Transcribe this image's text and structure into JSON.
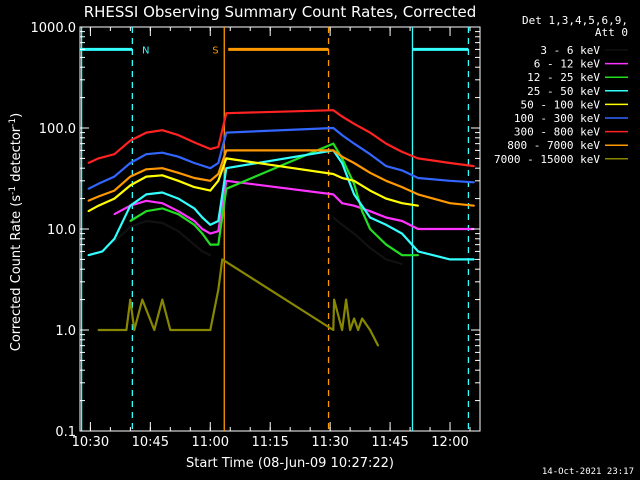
{
  "chart_data": {
    "type": "line",
    "title": "RHESSI Observing Summary Count Rates, Corrected",
    "xlabel": "Start Time (08-Jun-09 10:27:22)",
    "ylabel_main": "Corrected Count Rate (s",
    "ylabel_sup1": "-1",
    "ylabel_mid": " detector",
    "ylabel_sup2": "-1",
    "ylabel_end": ")",
    "yscale": "log",
    "ylim": [
      0.1,
      1000.0
    ],
    "xlim_minutes": [
      27.4,
      127.5
    ],
    "x_ticks": [
      {
        "label": "10:30",
        "minute": 30
      },
      {
        "label": "10:45",
        "minute": 45
      },
      {
        "label": "11:00",
        "minute": 60
      },
      {
        "label": "11:15",
        "minute": 75
      },
      {
        "label": "11:30",
        "minute": 90
      },
      {
        "label": "11:45",
        "minute": 105
      },
      {
        "label": "12:00",
        "minute": 120
      }
    ],
    "y_ticks": [
      {
        "label": "0.1",
        "value": 0.1
      },
      {
        "label": "1.0",
        "value": 1.0
      },
      {
        "label": "10.0",
        "value": 10.0
      },
      {
        "label": "100.0",
        "value": 100.0
      },
      {
        "label": "1000.0",
        "value": 1000.0
      }
    ],
    "legend_header": [
      "Det 1,3,4,5,6,9,",
      "Att 0"
    ],
    "legend_position": "top-right outside",
    "series": [
      {
        "name": "3 - 6 keV",
        "color": "#111111",
        "x": [
          29.5,
          32,
          36,
          40,
          44,
          48,
          52,
          56,
          58,
          60,
          62,
          90.8,
          93,
          96,
          100,
          104,
          108,
          112
        ],
        "y": [
          null,
          null,
          7.5,
          10.5,
          12,
          11.5,
          9.5,
          7,
          6,
          5.5,
          null,
          13,
          11,
          9,
          6.5,
          5,
          4.5,
          null
        ]
      },
      {
        "name": "6 - 12 keV",
        "color": "#ff33ff",
        "x": [
          29.5,
          36,
          40,
          44,
          48,
          52,
          56,
          58,
          60,
          62,
          64,
          90.8,
          93,
          96,
          100,
          104,
          108,
          112,
          120,
          126
        ],
        "y": [
          null,
          14,
          17,
          19,
          18,
          15,
          12,
          10,
          9,
          9.5,
          30,
          22,
          18,
          17,
          15,
          13,
          12,
          10,
          10,
          10
        ]
      },
      {
        "name": "12 - 25 keV",
        "color": "#22dd22",
        "x": [
          40,
          44,
          48,
          52,
          56,
          58,
          60,
          62,
          64,
          90.8,
          93,
          96,
          98,
          100,
          104,
          108,
          112
        ],
        "y": [
          12,
          15,
          16,
          14,
          11,
          9,
          7,
          7,
          25,
          70,
          50,
          28,
          15,
          10,
          7,
          5.5,
          5.5
        ]
      },
      {
        "name": "25 - 50 keV",
        "color": "#33ffff",
        "x": [
          29.5,
          33,
          36,
          40,
          44,
          48,
          52,
          56,
          58,
          60,
          62,
          64,
          90.8,
          93,
          96,
          100,
          104,
          108,
          112,
          120,
          126
        ],
        "y": [
          5.5,
          6,
          8,
          17,
          22,
          23,
          20,
          16,
          13,
          11,
          12,
          40,
          60,
          45,
          22,
          13,
          11,
          9,
          6,
          5,
          5
        ]
      },
      {
        "name": "50 - 100 keV",
        "color": "#ffff00",
        "x": [
          29.5,
          32,
          36,
          40,
          44,
          48,
          52,
          56,
          60,
          62,
          64,
          90.8,
          93,
          96,
          100,
          104,
          108,
          112
        ],
        "y": [
          15,
          17,
          20,
          27,
          33,
          34,
          30,
          26,
          24,
          30,
          50,
          35,
          32,
          30,
          24,
          20,
          18,
          17
        ]
      },
      {
        "name": "100 - 300 keV",
        "color": "#3366ff",
        "x": [
          29.5,
          32,
          36,
          40,
          44,
          48,
          52,
          56,
          60,
          62,
          64,
          90.8,
          93,
          96,
          100,
          104,
          108,
          112,
          120,
          126
        ],
        "y": [
          25,
          28,
          33,
          45,
          55,
          57,
          52,
          45,
          40,
          45,
          90,
          100,
          85,
          70,
          55,
          42,
          38,
          32,
          30,
          29
        ]
      },
      {
        "name": "300 - 800 keV",
        "color": "#ff2222",
        "x": [
          29.5,
          32,
          36,
          40,
          44,
          48,
          52,
          56,
          60,
          62,
          64,
          90.8,
          93,
          96,
          100,
          104,
          108,
          112,
          120,
          126
        ],
        "y": [
          45,
          50,
          55,
          75,
          90,
          95,
          85,
          72,
          62,
          65,
          140,
          150,
          130,
          110,
          90,
          70,
          58,
          50,
          45,
          42
        ]
      },
      {
        "name": "800 - 7000 keV",
        "color": "#ff9900",
        "x": [
          29.5,
          32,
          36,
          40,
          44,
          48,
          52,
          56,
          60,
          62,
          64,
          90.8,
          93,
          96,
          100,
          104,
          108,
          112,
          120,
          126
        ],
        "y": [
          19,
          21,
          24,
          33,
          39,
          40,
          36,
          32,
          30,
          35,
          60,
          60,
          52,
          45,
          36,
          30,
          26,
          22,
          18,
          17
        ]
      },
      {
        "name": "7000 - 15000 keV",
        "color": "#888800",
        "x": [
          32,
          36,
          39,
          40,
          41,
          43,
          46,
          48,
          50,
          52,
          56,
          60,
          62,
          63,
          90.8,
          91,
          93,
          94,
          95,
          96,
          97,
          98,
          100,
          102
        ],
        "y": [
          1,
          1,
          1,
          2,
          1,
          2,
          1,
          2,
          1,
          1,
          1,
          1,
          2.5,
          5,
          1,
          2,
          1,
          2,
          1,
          1.3,
          1,
          1.3,
          1,
          0.7
        ]
      }
    ],
    "annotations": [
      {
        "text": "N",
        "color": "#33ffff",
        "kind": "night-interval",
        "from": 27.4,
        "to": 40.5
      },
      {
        "text": "S",
        "color": "#ff9900",
        "kind": "saa-interval",
        "from": 63.5,
        "to": 89.6
      }
    ],
    "vertical_markers": [
      {
        "minute": 27.8,
        "color": "#33ffff",
        "style": "solid"
      },
      {
        "minute": 40.5,
        "color": "#33ffff",
        "style": "dashed"
      },
      {
        "minute": 63.5,
        "color": "#ff9900",
        "style": "solid"
      },
      {
        "minute": 89.6,
        "color": "#ff9900",
        "style": "dashed"
      },
      {
        "minute": 110.6,
        "color": "#33ffff",
        "style": "solid"
      },
      {
        "minute": 124.6,
        "color": "#33ffff",
        "style": "dashed"
      }
    ],
    "top_bars": [
      {
        "from": 27.4,
        "to": 40.5,
        "color": "#33ffff"
      },
      {
        "from": 64.5,
        "to": 89.6,
        "color": "#ff9900"
      },
      {
        "from": 110.6,
        "to": 124.6,
        "color": "#33ffff"
      }
    ],
    "timestamp": "14-Oct-2021 23:17"
  }
}
